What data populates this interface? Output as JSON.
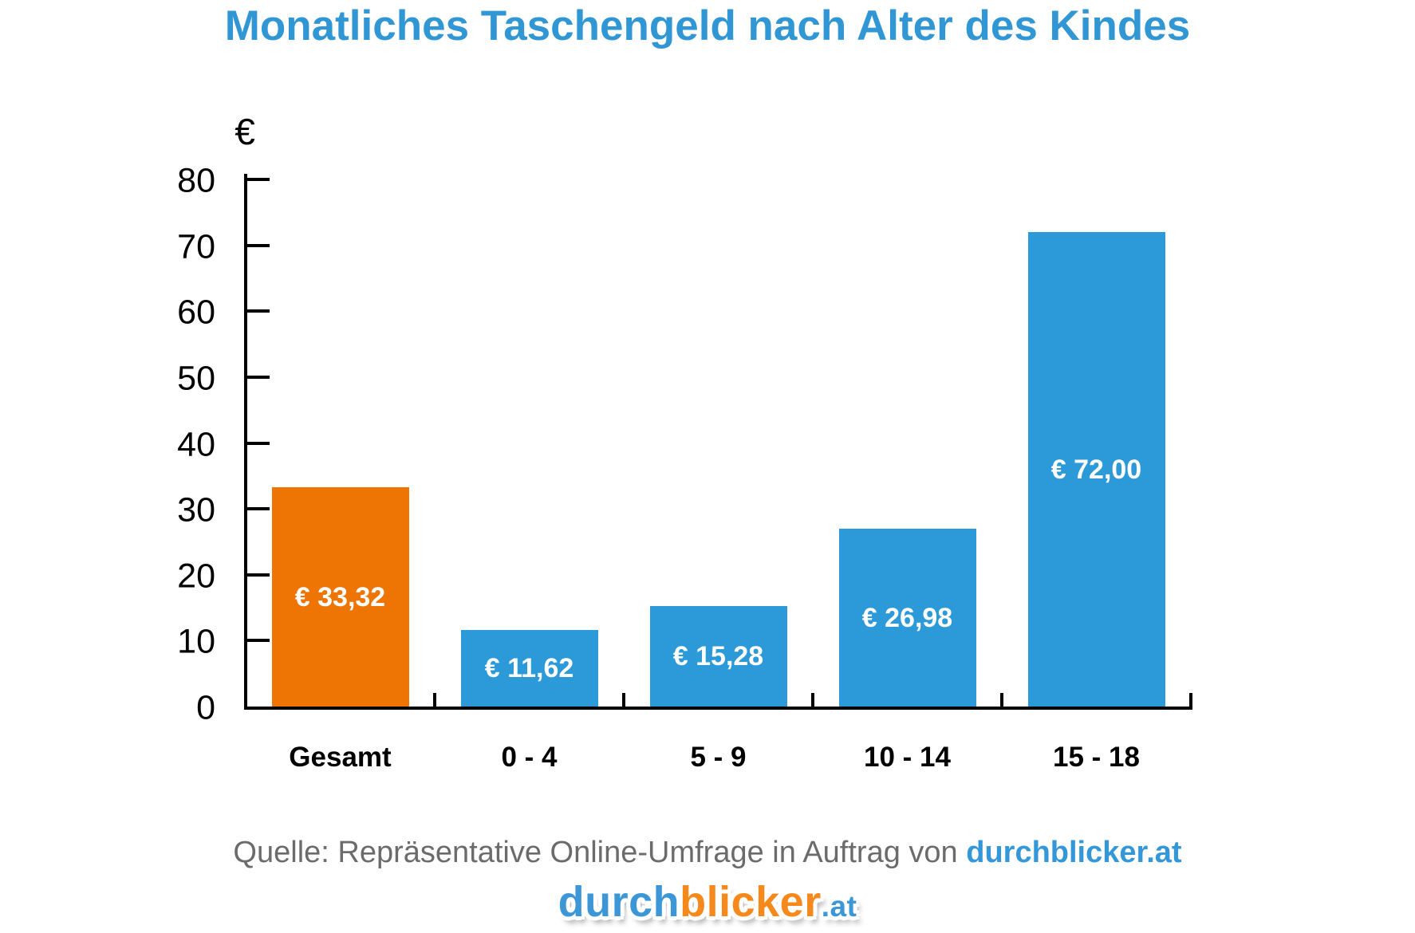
{
  "title": "Monatliches Taschengeld nach Alter des Kindes",
  "chart_data": {
    "type": "bar",
    "title": "Monatliches Taschengeld nach Alter des Kindes",
    "categories": [
      "Gesamt",
      "0 - 4",
      "5 - 9",
      "10 - 14",
      "15 - 18"
    ],
    "values": [
      33.32,
      11.62,
      15.28,
      26.98,
      72.0
    ],
    "bar_labels": [
      "€ 33,32",
      "€ 11,62",
      "€ 15,28",
      "€ 26,98",
      "€ 72,00"
    ],
    "bar_colors": [
      "#ee7504",
      "#2c99d8",
      "#2c99d8",
      "#2c99d8",
      "#2c99d8"
    ],
    "xlabel": "",
    "ylabel": "€",
    "ylim": [
      0,
      80
    ],
    "ytick_step": 10,
    "ytick_labels": [
      "0",
      "10",
      "20",
      "30",
      "40",
      "50",
      "60",
      "70",
      "80"
    ],
    "grid": false,
    "legend": "none",
    "value_label_position": "centered-inside-bar"
  },
  "footer": {
    "source_prefix": "Quelle: Repräsentative Online-Umfrage in Auftrag von ",
    "source_link": "durchblicker.at"
  },
  "logo": {
    "part_blue": "durch",
    "part_orange": "blicker",
    "part_at": ".at"
  },
  "colors": {
    "title_blue": "#3097d4",
    "bar_orange": "#ee7504",
    "bar_blue": "#2c99d8",
    "axis_black": "#000000",
    "source_gray": "#6b6b6b",
    "source_link_blue": "#3498d8",
    "logo_blue": "#3d96d6",
    "logo_orange": "#f6891c"
  }
}
